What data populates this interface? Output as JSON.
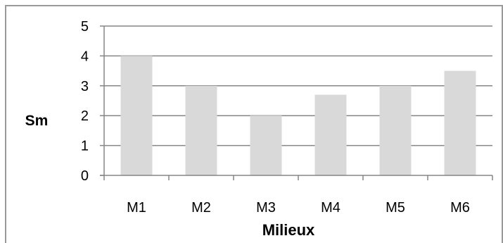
{
  "chart_data": {
    "type": "bar",
    "title": "",
    "xlabel": "Milieux",
    "ylabel": "Sm",
    "categories": [
      "M1",
      "M2",
      "M3",
      "M4",
      "M5",
      "M6"
    ],
    "values": [
      4,
      3,
      2,
      2.7,
      3,
      3.5
    ],
    "ylim": [
      0,
      5
    ],
    "yticks": [
      "0",
      "1",
      "2",
      "3",
      "4",
      "5"
    ],
    "grid": true,
    "legend": "none",
    "bar_color": "#d9d9d9",
    "grid_color": "#868686",
    "axis_color": "#868686"
  }
}
